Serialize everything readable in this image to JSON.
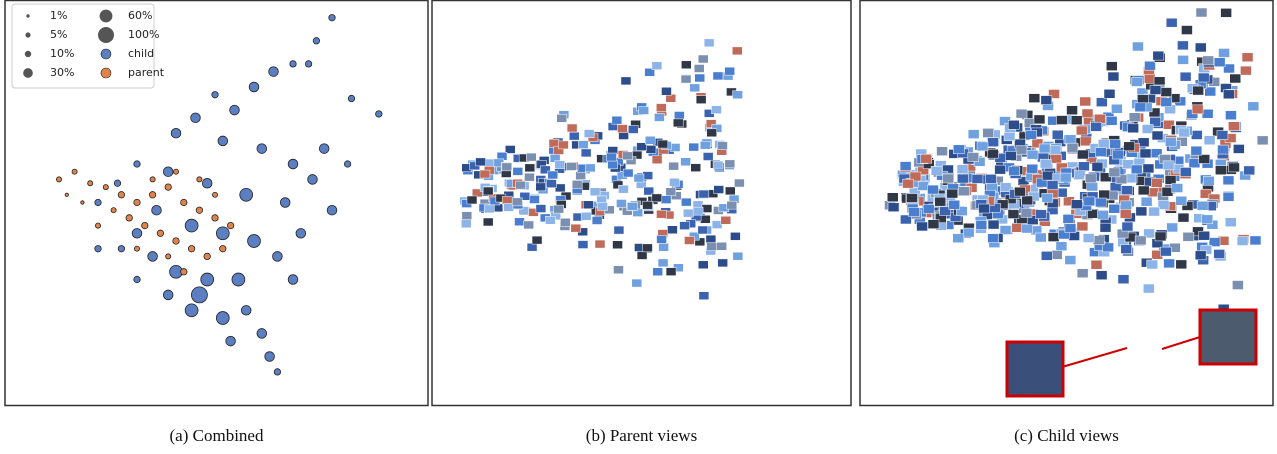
{
  "chart_data": {
    "type": "scatter",
    "xlim": [
      0,
      100
    ],
    "ylim": [
      0,
      100
    ],
    "size_legend": [
      {
        "value": 1,
        "label": "1%"
      },
      {
        "value": 5,
        "label": "5%"
      },
      {
        "value": 10,
        "label": "10%"
      },
      {
        "value": 30,
        "label": "30%"
      },
      {
        "value": 60,
        "label": "60%"
      },
      {
        "value": 100,
        "label": "100%"
      }
    ],
    "series": [
      {
        "name": "child",
        "color": "#5b7fc0",
        "x": [
          80,
          76,
          74,
          92,
          85,
          70,
          65,
          60,
          50,
          55,
          45,
          40,
          52,
          62,
          70,
          75,
          78,
          68,
          58,
          48,
          38,
          30,
          25,
          20,
          35,
          44,
          52,
          60,
          66,
          70,
          56,
          48,
          40,
          34,
          30,
          44,
          52,
          58,
          62,
          64,
          66,
          54,
          46,
          38,
          30,
          26,
          80,
          72,
          20,
          84
        ],
        "y": [
          98,
          92,
          86,
          73,
          77,
          86,
          84,
          80,
          78,
          74,
          72,
          68,
          66,
          64,
          60,
          56,
          64,
          50,
          52,
          55,
          58,
          60,
          55,
          50,
          48,
          44,
          42,
          40,
          36,
          30,
          30,
          30,
          32,
          36,
          42,
          22,
          20,
          22,
          16,
          10,
          6,
          14,
          26,
          26,
          30,
          38,
          48,
          42,
          38,
          60
        ],
        "sizes": [
          10,
          10,
          10,
          10,
          10,
          10,
          30,
          30,
          10,
          30,
          30,
          30,
          30,
          30,
          30,
          30,
          30,
          30,
          60,
          30,
          30,
          10,
          10,
          10,
          30,
          60,
          60,
          60,
          30,
          30,
          60,
          60,
          60,
          30,
          30,
          60,
          60,
          30,
          30,
          30,
          10,
          30,
          100,
          30,
          10,
          10,
          30,
          30,
          10,
          10
        ]
      },
      {
        "name": "parent",
        "color": "#e0844c",
        "x": [
          10,
          14,
          18,
          22,
          26,
          30,
          34,
          38,
          42,
          46,
          50,
          28,
          32,
          36,
          40,
          44,
          48,
          52,
          24,
          20,
          34,
          40,
          46,
          50,
          54,
          42,
          38,
          30,
          16,
          12
        ],
        "y": [
          56,
          58,
          55,
          54,
          52,
          50,
          52,
          54,
          50,
          48,
          46,
          46,
          44,
          42,
          40,
          38,
          36,
          38,
          48,
          44,
          56,
          58,
          56,
          52,
          44,
          32,
          36,
          38,
          50,
          52
        ],
        "sizes": [
          5,
          5,
          5,
          5,
          10,
          10,
          10,
          10,
          10,
          10,
          10,
          10,
          10,
          10,
          10,
          10,
          10,
          10,
          5,
          5,
          5,
          5,
          5,
          5,
          10,
          10,
          5,
          5,
          1,
          1
        ]
      }
    ]
  },
  "captions": [
    "(a) Combined",
    "(b) Parent views",
    "(c) Child views"
  ]
}
